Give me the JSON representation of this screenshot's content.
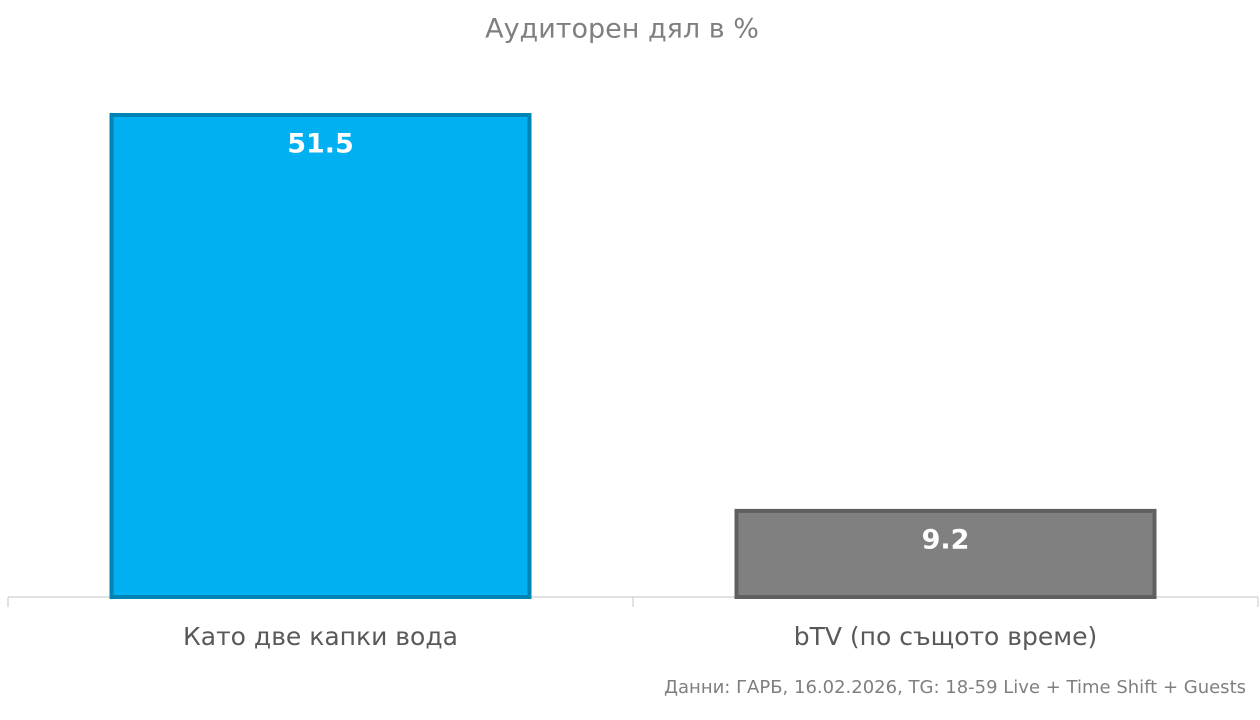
{
  "chart_data": {
    "type": "bar",
    "title": "Аудиторен дял в %",
    "categories": [
      "Като две капки вода",
      "bTV (по същото време)"
    ],
    "values": [
      51.5,
      9.2
    ],
    "colors": [
      "#00b0f0",
      "#808080"
    ],
    "source": "Данни: ГАРБ, 16.02.2026, TG: 18-59 Live + Time Shift + Guests"
  }
}
